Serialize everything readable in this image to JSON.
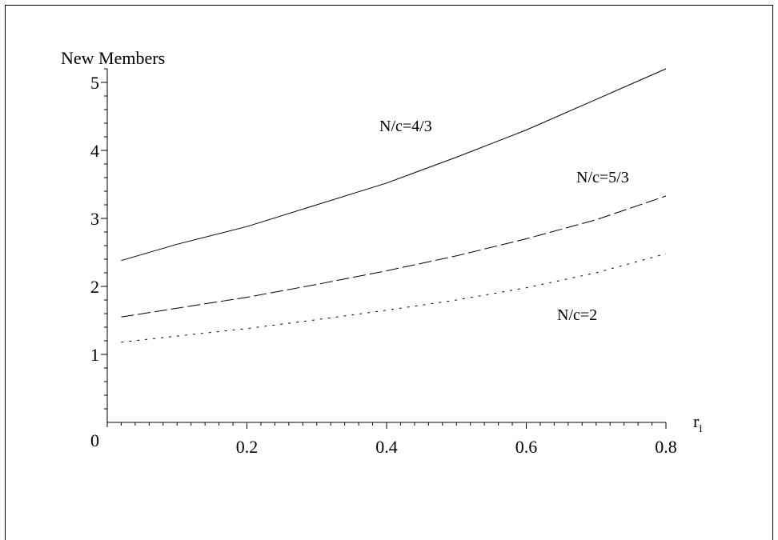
{
  "chart_data": {
    "type": "line",
    "title": "",
    "ylabel": "New Members",
    "xlabel": "r",
    "xlabel_sub": "i",
    "xlim": [
      0,
      0.8
    ],
    "ylim": [
      0,
      5.2
    ],
    "x_ticks": [
      0.2,
      0.4,
      0.6,
      0.8
    ],
    "x_tick_labels": [
      "0.2",
      "0.4",
      "0.6",
      "0.8"
    ],
    "y_ticks": [
      1,
      2,
      3,
      4,
      5
    ],
    "y_tick_labels": [
      "1",
      "2",
      "3",
      "4",
      "5"
    ],
    "origin_label": "0",
    "grid": false,
    "legend": "none",
    "series": [
      {
        "label": "N/c=4/3",
        "style": "solid",
        "x": [
          0.02,
          0.1,
          0.2,
          0.3,
          0.4,
          0.5,
          0.6,
          0.7,
          0.8
        ],
        "y": [
          2.38,
          2.62,
          2.88,
          3.2,
          3.52,
          3.9,
          4.3,
          4.75,
          5.2
        ]
      },
      {
        "label": "N/c=5/3",
        "style": "dashed",
        "x": [
          0.02,
          0.1,
          0.2,
          0.3,
          0.4,
          0.5,
          0.6,
          0.7,
          0.8
        ],
        "y": [
          1.55,
          1.68,
          1.84,
          2.03,
          2.23,
          2.45,
          2.7,
          2.98,
          3.33
        ]
      },
      {
        "label": "N/c=2",
        "style": "dotted",
        "x": [
          0.02,
          0.1,
          0.2,
          0.3,
          0.4,
          0.5,
          0.6,
          0.7,
          0.8
        ],
        "y": [
          1.18,
          1.27,
          1.38,
          1.51,
          1.65,
          1.8,
          1.98,
          2.2,
          2.48
        ]
      }
    ]
  }
}
